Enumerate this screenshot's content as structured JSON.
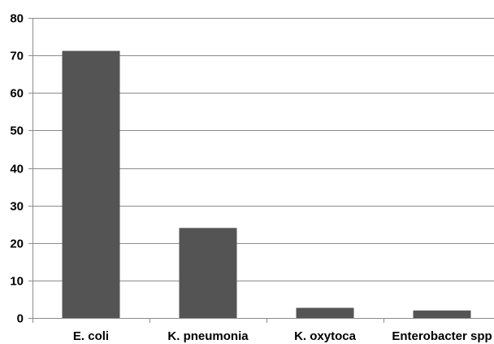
{
  "chart_data": {
    "type": "bar",
    "title": "",
    "xlabel": "",
    "ylabel": "",
    "categories": [
      "E. coli",
      "K. pneumonia",
      "K. oxytoca",
      "Enterobacter spp"
    ],
    "values": [
      71.2,
      24.0,
      2.7,
      2.0
    ],
    "ylim": [
      0,
      80
    ],
    "yticks": [
      0,
      10,
      20,
      30,
      40,
      50,
      60,
      70,
      80
    ],
    "grid": true,
    "legend": "none",
    "colors": {
      "bar": "#545454",
      "grid": "#8c8c8c",
      "axis": "#8c8c8c",
      "text": "#000000"
    }
  }
}
